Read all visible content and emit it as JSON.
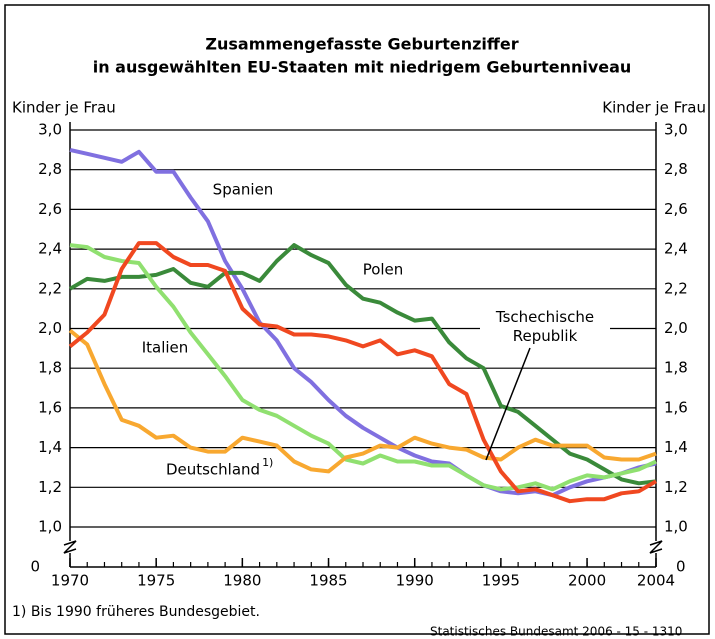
{
  "chart_data": {
    "type": "line",
    "title": [
      "Zusammengefasste Geburtenziffer",
      "in ausgewählten EU-Staaten mit niedrigem Geburtenniveau"
    ],
    "y_label": "Kinder je Frau",
    "y2_label": "Kinder je Frau",
    "x": [
      1970,
      1971,
      1972,
      1973,
      1974,
      1975,
      1976,
      1977,
      1978,
      1979,
      1980,
      1981,
      1982,
      1983,
      1984,
      1985,
      1986,
      1987,
      1988,
      1989,
      1990,
      1991,
      1992,
      1993,
      1994,
      1995,
      1996,
      1997,
      1998,
      1999,
      2000,
      2001,
      2002,
      2003,
      2004
    ],
    "xlim": [
      1970,
      2004
    ],
    "xticks": [
      1970,
      1975,
      1980,
      1985,
      1990,
      1995,
      2000,
      2004
    ],
    "ylim": [
      1.0,
      3.0
    ],
    "yticks": [
      {
        "value": 1.0,
        "label": "1,0"
      },
      {
        "value": 1.2,
        "label": "1,2"
      },
      {
        "value": 1.4,
        "label": "1,4"
      },
      {
        "value": 1.6,
        "label": "1,6"
      },
      {
        "value": 1.8,
        "label": "1,8"
      },
      {
        "value": 2.0,
        "label": "2,0"
      },
      {
        "value": 2.2,
        "label": "2,2"
      },
      {
        "value": 2.4,
        "label": "2,4"
      },
      {
        "value": 2.6,
        "label": "2,6"
      },
      {
        "value": 2.8,
        "label": "2,8"
      },
      {
        "value": 3.0,
        "label": "3,0"
      }
    ],
    "y_break_ticks": [
      0
    ],
    "grid": true,
    "series": [
      {
        "name": "Spanien",
        "color": "#8070e0",
        "values": [
          2.9,
          2.88,
          2.86,
          2.84,
          2.89,
          2.79,
          2.79,
          2.66,
          2.54,
          2.34,
          2.2,
          2.03,
          1.94,
          1.8,
          1.73,
          1.64,
          1.56,
          1.5,
          1.45,
          1.4,
          1.36,
          1.33,
          1.32,
          1.26,
          1.21,
          1.18,
          1.17,
          1.18,
          1.16,
          1.2,
          1.23,
          1.25,
          1.27,
          1.3,
          1.32
        ]
      },
      {
        "name": "Polen",
        "color": "#3a8a3a",
        "values": [
          2.2,
          2.25,
          2.24,
          2.26,
          2.26,
          2.27,
          2.3,
          2.23,
          2.21,
          2.28,
          2.28,
          2.24,
          2.34,
          2.42,
          2.37,
          2.33,
          2.22,
          2.15,
          2.13,
          2.08,
          2.04,
          2.05,
          1.93,
          1.85,
          1.8,
          1.61,
          1.58,
          1.51,
          1.44,
          1.37,
          1.34,
          1.29,
          1.24,
          1.22,
          1.23
        ]
      },
      {
        "name": "Italien",
        "color": "#90e070",
        "values": [
          2.42,
          2.41,
          2.36,
          2.34,
          2.33,
          2.21,
          2.11,
          1.98,
          1.87,
          1.76,
          1.64,
          1.59,
          1.56,
          1.51,
          1.46,
          1.42,
          1.34,
          1.32,
          1.36,
          1.33,
          1.33,
          1.31,
          1.31,
          1.26,
          1.21,
          1.19,
          1.2,
          1.22,
          1.19,
          1.23,
          1.26,
          1.25,
          1.27,
          1.29,
          1.33
        ]
      },
      {
        "name": "Deutschland",
        "note": "1)",
        "color": "#f8a830",
        "values": [
          1.99,
          1.92,
          1.72,
          1.54,
          1.51,
          1.45,
          1.46,
          1.4,
          1.38,
          1.38,
          1.45,
          1.43,
          1.41,
          1.33,
          1.29,
          1.28,
          1.35,
          1.37,
          1.41,
          1.4,
          1.45,
          1.42,
          1.4,
          1.39,
          1.35,
          1.34,
          1.4,
          1.44,
          1.41,
          1.41,
          1.41,
          1.35,
          1.34,
          1.34,
          1.37
        ]
      },
      {
        "name": "Tschechische Republik",
        "color": "#f04820",
        "values": [
          1.91,
          1.98,
          2.07,
          2.3,
          2.43,
          2.43,
          2.36,
          2.32,
          2.32,
          2.29,
          2.1,
          2.02,
          2.01,
          1.97,
          1.97,
          1.96,
          1.94,
          1.91,
          1.94,
          1.87,
          1.89,
          1.86,
          1.72,
          1.67,
          1.44,
          1.28,
          1.18,
          1.19,
          1.16,
          1.13,
          1.14,
          1.14,
          1.17,
          1.18,
          1.23
        ]
      }
    ],
    "footnote": "1) Bis 1990 früheres Bundesgebiet.",
    "source": "Statistisches Bundesamt 2006 - 15 - 1310"
  }
}
